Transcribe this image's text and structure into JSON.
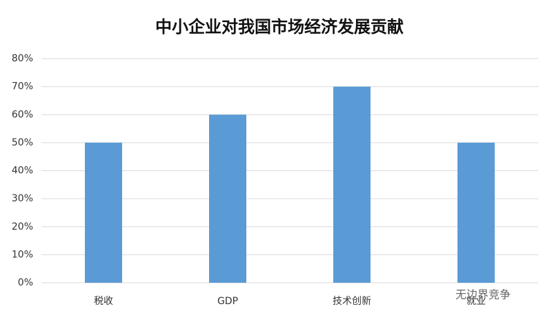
{
  "chart_data": {
    "type": "bar",
    "title": "中小企业对我国市场经济发展贡献",
    "categories": [
      "税收",
      "GDP",
      "技术创新",
      "就业"
    ],
    "values": [
      50,
      60,
      70,
      50
    ],
    "color": "#5b9bd5",
    "ylim": [
      0,
      80
    ],
    "yticks": [
      {
        "value": 0,
        "label": "0%"
      },
      {
        "value": 10,
        "label": "10%"
      },
      {
        "value": 20,
        "label": "20%"
      },
      {
        "value": 30,
        "label": "30%"
      },
      {
        "value": 40,
        "label": "40%"
      },
      {
        "value": 50,
        "label": "50%"
      },
      {
        "value": 60,
        "label": "60%"
      },
      {
        "value": 70,
        "label": "70%"
      },
      {
        "value": 80,
        "label": "80%"
      }
    ],
    "grid": true,
    "watermark": "无边界竞争"
  }
}
